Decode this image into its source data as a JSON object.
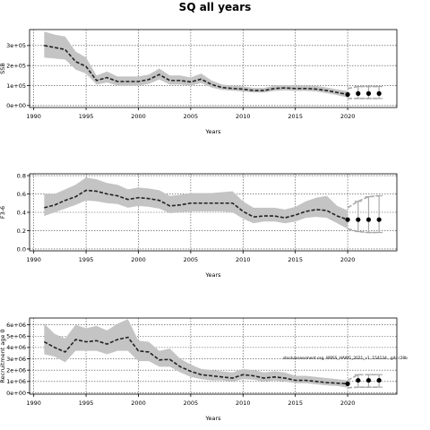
{
  "title": "SQ all years",
  "colors": {
    "band": "#c4c4c4",
    "line": "#222222",
    "future_band": "#aaaaaa",
    "point": "#000000",
    "grid": "#444444"
  },
  "chart_data": [
    {
      "type": "line",
      "panel": "top",
      "xlabel": "Years",
      "ylabel": "SSB",
      "xlim": [
        1989.6,
        2024.7
      ],
      "ylim": [
        -10000,
        380000
      ],
      "xticks": [
        1990,
        1995,
        2000,
        2005,
        2010,
        2015,
        2020
      ],
      "xtick_labels": [
        "1990",
        "1995",
        "2000",
        "2005",
        "2010",
        "2015",
        "2020"
      ],
      "yticks": [
        0,
        100000,
        200000,
        300000
      ],
      "ytick_labels": [
        "0e+00",
        "1e+05",
        "2e+05",
        "3e+05"
      ],
      "grid": true,
      "series": [
        {
          "x": [
            1991,
            1992,
            1993,
            1994,
            1995,
            1996,
            1997,
            1998,
            1999,
            2000,
            2001,
            2002,
            2003,
            2004,
            2005,
            2006,
            2007,
            2008,
            2009,
            2010,
            2011,
            2012,
            2013,
            2014,
            2015,
            2016,
            2017,
            2018,
            2019,
            2020
          ],
          "values": [
            300000,
            290000,
            280000,
            220000,
            195000,
            125000,
            140000,
            120000,
            120000,
            120000,
            130000,
            155000,
            125000,
            125000,
            118000,
            132000,
            105000,
            90000,
            85000,
            82000,
            75000,
            75000,
            85000,
            88000,
            85000,
            85000,
            82000,
            75000,
            65000,
            55000
          ],
          "lower": [
            240000,
            235000,
            230000,
            180000,
            160000,
            105000,
            115000,
            100000,
            100000,
            100000,
            108000,
            130000,
            105000,
            105000,
            100000,
            112000,
            90000,
            78000,
            74000,
            70000,
            65000,
            65000,
            73000,
            76000,
            73000,
            73000,
            70000,
            62000,
            52000,
            40000
          ],
          "upper": [
            370000,
            355000,
            345000,
            270000,
            240000,
            150000,
            170000,
            145000,
            145000,
            145000,
            155000,
            185000,
            150000,
            150000,
            140000,
            160000,
            125000,
            105000,
            100000,
            96000,
            88000,
            88000,
            100000,
            103000,
            100000,
            100000,
            98000,
            90000,
            80000,
            72000
          ]
        }
      ],
      "forecast": {
        "x": [
          2020,
          2021,
          2022,
          2023
        ],
        "values": [
          55000,
          60000,
          60000,
          60000
        ],
        "lower": [
          35000,
          35000,
          35000,
          35000
        ],
        "upper": [
          85000,
          95000,
          95000,
          95000
        ]
      }
    },
    {
      "type": "line",
      "panel": "middle",
      "xlabel": "Years",
      "ylabel": "F3-6",
      "xlim": [
        1989.6,
        2024.7
      ],
      "ylim": [
        -0.02,
        0.82
      ],
      "xticks": [
        1990,
        1995,
        2000,
        2005,
        2010,
        2015,
        2020
      ],
      "xtick_labels": [
        "1990",
        "1995",
        "2000",
        "2005",
        "2010",
        "2015",
        "2020"
      ],
      "yticks": [
        0.0,
        0.2,
        0.4,
        0.6,
        0.8
      ],
      "ytick_labels": [
        "0.0",
        "0.2",
        "0.4",
        "0.6",
        "0.8"
      ],
      "grid": true,
      "series": [
        {
          "x": [
            1991,
            1992,
            1993,
            1994,
            1995,
            1996,
            1997,
            1998,
            1999,
            2000,
            2001,
            2002,
            2003,
            2004,
            2005,
            2006,
            2007,
            2008,
            2009,
            2010,
            2011,
            2012,
            2013,
            2014,
            2015,
            2016,
            2017,
            2018,
            2019,
            2020
          ],
          "values": [
            0.45,
            0.48,
            0.53,
            0.57,
            0.64,
            0.63,
            0.6,
            0.58,
            0.54,
            0.56,
            0.55,
            0.53,
            0.47,
            0.48,
            0.5,
            0.5,
            0.5,
            0.5,
            0.5,
            0.41,
            0.35,
            0.36,
            0.36,
            0.34,
            0.37,
            0.41,
            0.43,
            0.42,
            0.36,
            0.32
          ],
          "lower": [
            0.36,
            0.4,
            0.44,
            0.48,
            0.53,
            0.52,
            0.5,
            0.49,
            0.45,
            0.47,
            0.46,
            0.44,
            0.39,
            0.4,
            0.41,
            0.41,
            0.41,
            0.41,
            0.4,
            0.33,
            0.28,
            0.3,
            0.3,
            0.28,
            0.3,
            0.34,
            0.35,
            0.34,
            0.28,
            0.22
          ],
          "upper": [
            0.6,
            0.6,
            0.65,
            0.7,
            0.78,
            0.76,
            0.72,
            0.7,
            0.65,
            0.67,
            0.66,
            0.64,
            0.58,
            0.59,
            0.61,
            0.61,
            0.61,
            0.62,
            0.63,
            0.52,
            0.45,
            0.45,
            0.45,
            0.43,
            0.46,
            0.52,
            0.56,
            0.58,
            0.47,
            0.42
          ]
        }
      ],
      "forecast": {
        "x": [
          2020,
          2021,
          2022,
          2023
        ],
        "values": [
          0.32,
          0.32,
          0.32,
          0.32
        ],
        "lower": [
          0.22,
          0.19,
          0.18,
          0.18
        ],
        "upper": [
          0.45,
          0.52,
          0.57,
          0.58
        ]
      }
    },
    {
      "type": "line",
      "panel": "bottom",
      "xlabel": "Years",
      "ylabel": "Recruitment age 0",
      "xlim": [
        1989.6,
        2024.7
      ],
      "ylim": [
        -120000,
        6600000
      ],
      "xticks": [
        1990,
        1995,
        2000,
        2005,
        2010,
        2015,
        2020
      ],
      "xtick_labels": [
        "1990",
        "1995",
        "2000",
        "2005",
        "2010",
        "2015",
        "2020"
      ],
      "yticks": [
        0,
        1000000,
        2000000,
        3000000,
        4000000,
        5000000,
        6000000
      ],
      "ytick_labels": [
        "0e+00",
        "1e+06",
        "2e+06",
        "3e+06",
        "4e+06",
        "5e+06",
        "6e+06"
      ],
      "grid": true,
      "annotation": "stockassessment.org, WBSS_HAWG_2021_v1, 154134 , git: c28b",
      "series": [
        {
          "x": [
            1991,
            1992,
            1993,
            1994,
            1995,
            1996,
            1997,
            1998,
            1999,
            2000,
            2001,
            2002,
            2003,
            2004,
            2005,
            2006,
            2007,
            2008,
            2009,
            2010,
            2011,
            2012,
            2013,
            2014,
            2015,
            2016,
            2017,
            2018,
            2019,
            2020
          ],
          "values": [
            4500000,
            4000000,
            3600000,
            4700000,
            4500000,
            4600000,
            4300000,
            4700000,
            4900000,
            3700000,
            3600000,
            2900000,
            2950000,
            2300000,
            1900000,
            1600000,
            1500000,
            1400000,
            1300000,
            1600000,
            1500000,
            1300000,
            1400000,
            1300000,
            1100000,
            1100000,
            1000000,
            900000,
            850000,
            800000
          ],
          "lower": [
            3400000,
            3200000,
            2700000,
            3700000,
            3700000,
            3700000,
            3400000,
            3700000,
            3700000,
            2800000,
            2800000,
            2300000,
            2300000,
            1800000,
            1400000,
            1200000,
            1100000,
            1100000,
            1000000,
            1200000,
            1150000,
            1000000,
            1100000,
            1000000,
            850000,
            850000,
            750000,
            650000,
            600000,
            450000
          ],
          "upper": [
            6100000,
            5200000,
            4800000,
            6000000,
            5700000,
            5900000,
            5500000,
            6100000,
            6500000,
            4600000,
            4500000,
            3700000,
            3900000,
            3000000,
            2500000,
            2100000,
            2000000,
            1900000,
            1800000,
            2100000,
            2000000,
            1800000,
            1900000,
            1800000,
            1500000,
            1500000,
            1400000,
            1300000,
            1200000,
            1100000
          ]
        }
      ],
      "forecast": {
        "x": [
          2020,
          2021,
          2022,
          2023
        ],
        "values": [
          800000,
          1100000,
          1100000,
          1100000
        ],
        "lower": [
          450000,
          500000,
          500000,
          500000
        ],
        "upper": [
          1100000,
          1600000,
          1600000,
          1600000
        ]
      }
    }
  ]
}
